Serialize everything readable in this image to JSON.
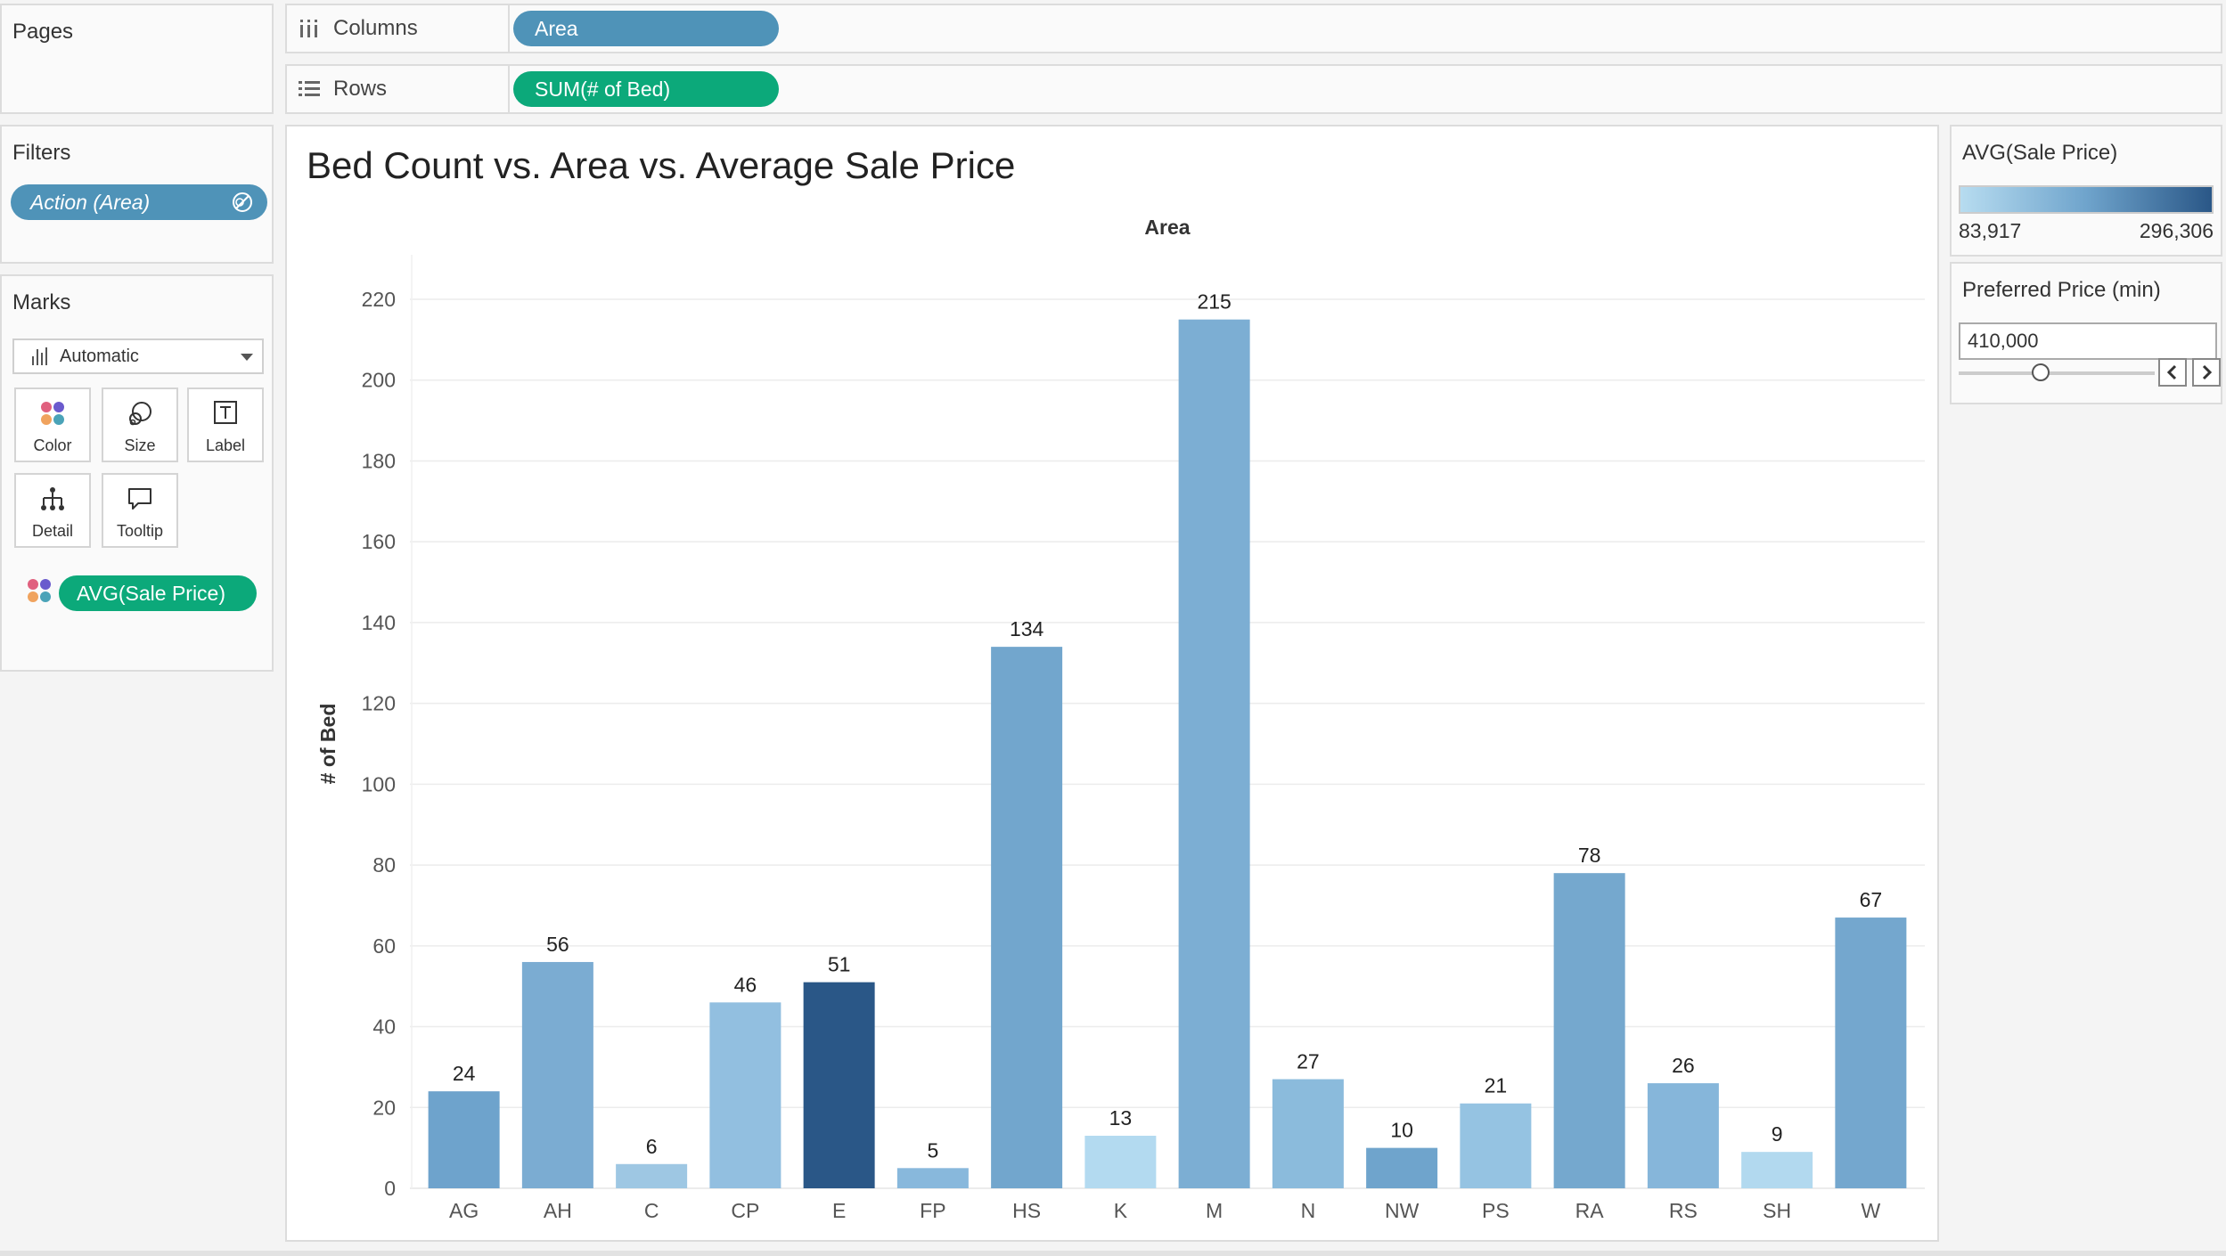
{
  "shelves": {
    "pages_label": "Pages",
    "columns_label": "Columns",
    "columns_pill": "Area",
    "rows_label": "Rows",
    "rows_pill": "SUM(# of Bed)"
  },
  "filters": {
    "title": "Filters",
    "pill": "Action (Area)"
  },
  "marks": {
    "title": "Marks",
    "type": "Automatic",
    "buttons": {
      "color": "Color",
      "size": "Size",
      "label": "Label",
      "detail": "Detail",
      "tooltip": "Tooltip"
    },
    "color_field": "AVG(Sale Price)"
  },
  "legend": {
    "title": "AVG(Sale Price)",
    "min": "83,917",
    "max": "296,306",
    "colors": [
      "#b7dcf0",
      "#2a5787"
    ]
  },
  "parameter": {
    "title": "Preferred Price (min)",
    "value": "410,000"
  },
  "chart_data": {
    "type": "bar",
    "title": "Bed Count vs. Area vs. Average Sale Price",
    "x_header": "Area",
    "ylabel": "# of Bed",
    "ylim": [
      0,
      220
    ],
    "yticks": [
      0,
      20,
      40,
      60,
      80,
      100,
      120,
      140,
      160,
      180,
      200,
      220
    ],
    "grid": true,
    "categories": [
      "AG",
      "AH",
      "C",
      "CP",
      "E",
      "FP",
      "HS",
      "K",
      "M",
      "N",
      "NW",
      "PS",
      "RA",
      "RS",
      "SH",
      "W"
    ],
    "values": [
      24,
      56,
      6,
      46,
      51,
      5,
      134,
      13,
      215,
      27,
      10,
      21,
      78,
      26,
      9,
      67
    ],
    "colors": [
      "#6ea3cc",
      "#7bacd2",
      "#9ec7e3",
      "#92bfe0",
      "#2a5787",
      "#88b8dc",
      "#72a6cd",
      "#b3daf0",
      "#7caed3",
      "#8bbbdc",
      "#6fa4cc",
      "#95c3e2",
      "#75a8ce",
      "#86b6da",
      "#b2d9ef",
      "#74a7ce"
    ]
  }
}
